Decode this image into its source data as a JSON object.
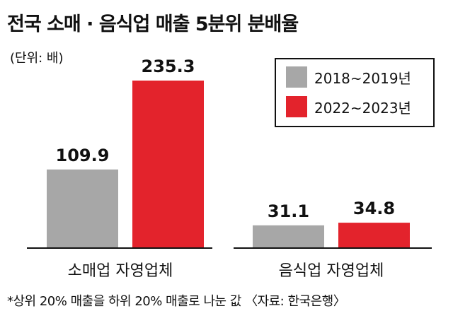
{
  "title": "전국 소매 · 음식업 매출 5분위 분배율",
  "unit_note": "(단위: 배)",
  "footnote": "*상위 20% 매출을 하위 20% 매출로 나눈 값 〈자료: 한국은행〉",
  "chart_data": {
    "type": "bar",
    "categories": [
      "소매업 자영업체",
      "음식업 자영업체"
    ],
    "series": [
      {
        "name": "2018~2019년",
        "values": [
          109.9,
          31.1
        ],
        "labels": [
          "109.9",
          "31.1"
        ],
        "color": "#a7a7a7"
      },
      {
        "name": "2022~2023년",
        "values": [
          235.3,
          34.8
        ],
        "labels": [
          "235.3",
          "34.8"
        ],
        "color": "#e3232c"
      }
    ],
    "ylim": [
      0,
      235.3
    ],
    "grid": false,
    "legend_position": "top-right"
  }
}
